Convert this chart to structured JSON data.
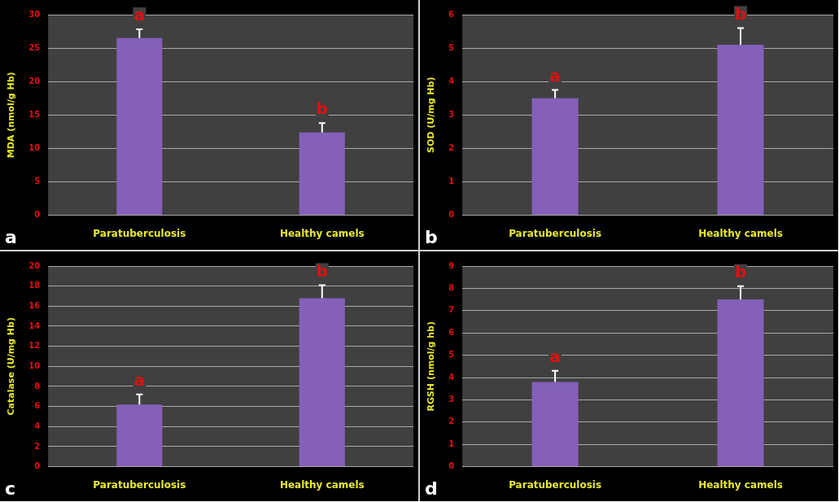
{
  "chart_data": [
    {
      "type": "bar",
      "ylabel": "MDA (nmol/g Hb)",
      "categories": [
        "Paratuberculosis",
        "Healthy camels"
      ],
      "values": [
        26.5,
        12.4
      ],
      "errors": [
        1.3,
        1.4
      ],
      "color": "#8460b8",
      "ylim": [
        0,
        30
      ],
      "yticks": [
        0,
        5,
        10,
        15,
        20,
        25,
        30
      ],
      "grid": "y",
      "annotations": [
        "a",
        "a",
        "b"
      ]
    },
    {
      "type": "bar",
      "ylabel": "SOD (U/mg Hb)",
      "categories": [
        "Paratuberculosis",
        "Healthy camels"
      ],
      "values": [
        3.5,
        5.1
      ],
      "errors": [
        0.25,
        0.5
      ],
      "color": "#8460b8",
      "ylim": [
        0,
        6
      ],
      "yticks": [
        0,
        1,
        2,
        3,
        4,
        5,
        6
      ],
      "grid": "y",
      "annotations": [
        "b",
        "a",
        "b"
      ]
    },
    {
      "type": "bar",
      "ylabel": "Catalase (U/mg Hb)",
      "categories": [
        "Paratuberculosis",
        "Healthy camels"
      ],
      "values": [
        6.2,
        16.8
      ],
      "errors": [
        1.0,
        1.3
      ],
      "color": "#8460b8",
      "ylim": [
        0,
        20
      ],
      "yticks": [
        0,
        2,
        4,
        6,
        8,
        10,
        12,
        14,
        16,
        18,
        20
      ],
      "grid": "y",
      "annotations": [
        "c",
        "a",
        "b"
      ]
    },
    {
      "type": "bar",
      "ylabel": "RGSH (nmol/g hb)",
      "categories": [
        "Paratuberculosis",
        "Healthy camels"
      ],
      "values": [
        3.8,
        7.5
      ],
      "errors": [
        0.5,
        0.6
      ],
      "color": "#8460b8",
      "ylim": [
        0,
        9
      ],
      "yticks": [
        0,
        1,
        2,
        3,
        4,
        5,
        6,
        7,
        8,
        9
      ],
      "grid": "y",
      "annotations": [
        "d",
        "a",
        "b"
      ]
    }
  ]
}
